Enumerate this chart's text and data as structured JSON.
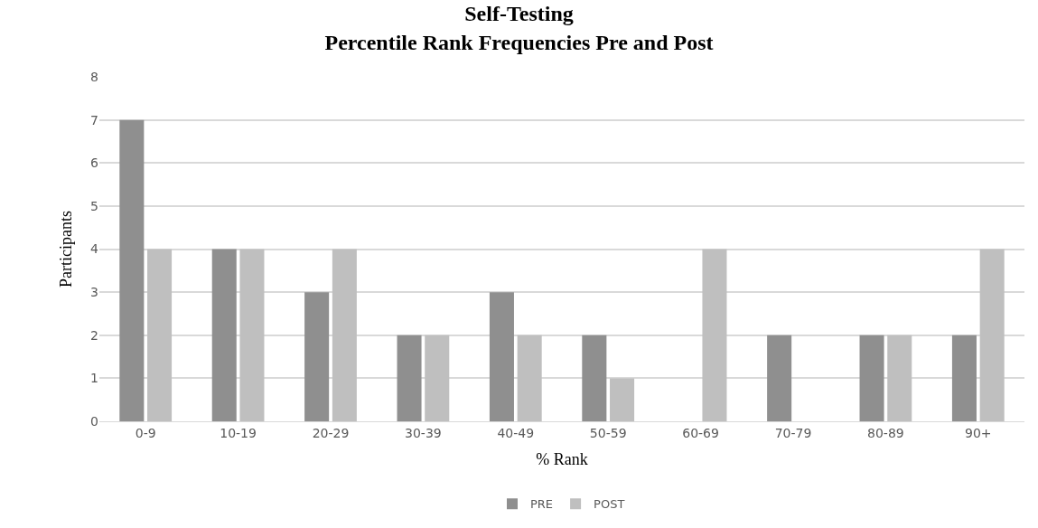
{
  "chart_data": {
    "type": "bar",
    "title": "Self-Testing\nPercentile Rank Frequencies Pre and Post",
    "xlabel": "% Rank",
    "ylabel": "Participants",
    "categories": [
      "0-9",
      "10-19",
      "20-29",
      "30-39",
      "40-49",
      "50-59",
      "60-69",
      "70-79",
      "80-89",
      "90+"
    ],
    "series": [
      {
        "name": "PRE",
        "color": "#8f8f8f",
        "values": [
          7,
          4,
          3,
          2,
          3,
          2,
          0,
          2,
          2,
          2
        ]
      },
      {
        "name": "POST",
        "color": "#bfbfbf",
        "values": [
          4,
          4,
          4,
          2,
          2,
          1,
          4,
          0,
          2,
          4
        ]
      }
    ],
    "ylim": [
      0,
      8
    ],
    "yticks": [
      0,
      1,
      2,
      3,
      4,
      5,
      6,
      7,
      8
    ],
    "grid": "y",
    "legend": "bottom"
  }
}
